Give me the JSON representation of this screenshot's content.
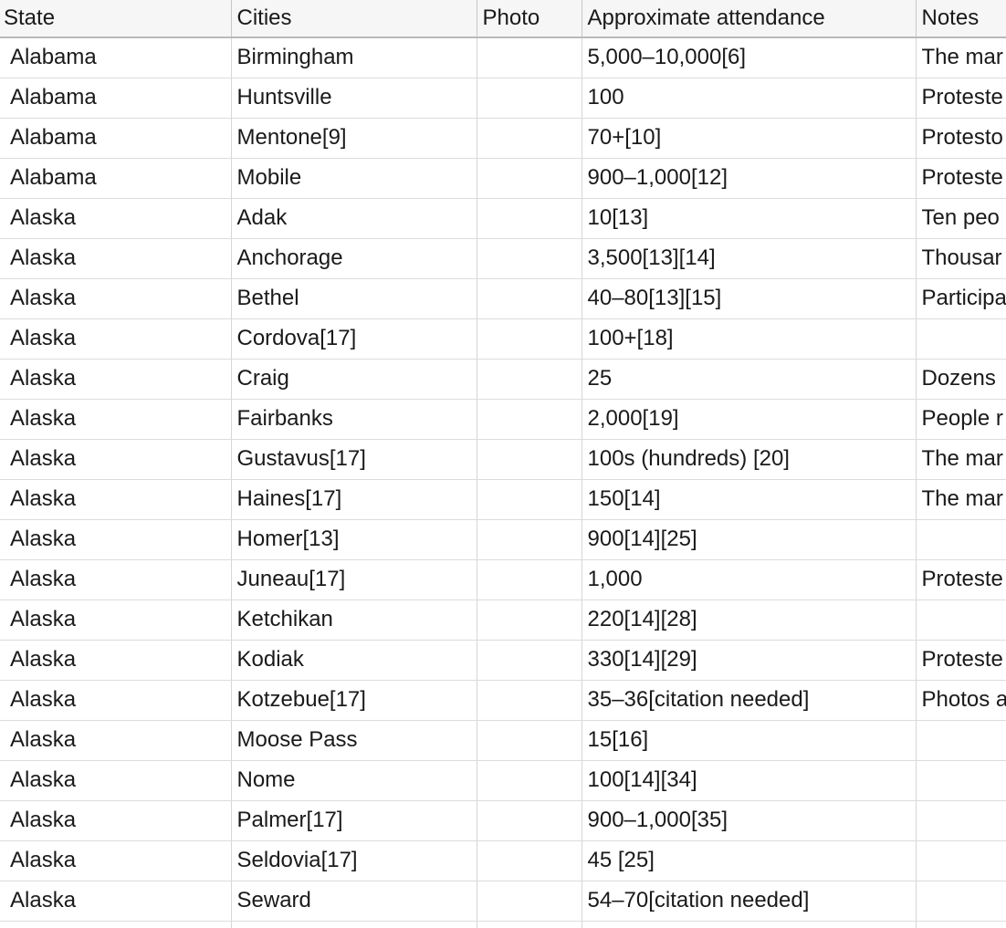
{
  "table": {
    "columns": [
      "State",
      "Cities",
      "Photo",
      "Approximate attendance",
      "Notes"
    ],
    "rows": [
      [
        "Alabama",
        "Birmingham",
        "",
        "5,000–10,000[6]",
        "The mar"
      ],
      [
        "Alabama",
        "Huntsville",
        "",
        "100",
        "Proteste"
      ],
      [
        "Alabama",
        "Mentone[9]",
        "",
        "70+[10]",
        "Protesto"
      ],
      [
        "Alabama",
        "Mobile",
        "",
        "900–1,000[12]",
        "Proteste"
      ],
      [
        "Alaska",
        "Adak",
        "",
        "10[13]",
        "Ten peo"
      ],
      [
        "Alaska",
        "Anchorage",
        "",
        "3,500[13][14]",
        "Thousar"
      ],
      [
        "Alaska",
        "Bethel",
        "",
        "40–80[13][15]",
        "Participa"
      ],
      [
        "Alaska",
        "Cordova[17]",
        "",
        "100+[18]",
        ""
      ],
      [
        "Alaska",
        "Craig",
        "",
        "25",
        "Dozens"
      ],
      [
        "Alaska",
        "Fairbanks",
        "",
        "2,000[19]",
        "People r"
      ],
      [
        "Alaska",
        "Gustavus[17]",
        "",
        "100s (hundreds) [20]",
        "The mar"
      ],
      [
        "Alaska",
        "Haines[17]",
        "",
        "150[14]",
        "The mar"
      ],
      [
        "Alaska",
        "Homer[13]",
        "",
        "900[14][25]",
        ""
      ],
      [
        "Alaska",
        "Juneau[17]",
        "",
        "1,000",
        "Proteste"
      ],
      [
        "Alaska",
        "Ketchikan",
        "",
        "220[14][28]",
        ""
      ],
      [
        "Alaska",
        "Kodiak",
        "",
        "330[14][29]",
        "Proteste"
      ],
      [
        "Alaska",
        "Kotzebue[17]",
        "",
        "35–36[citation needed]",
        "Photos a"
      ],
      [
        "Alaska",
        "Moose Pass",
        "",
        "15[16]",
        ""
      ],
      [
        "Alaska",
        "Nome",
        "",
        "100[14][34]",
        ""
      ],
      [
        "Alaska",
        "Palmer[17]",
        "",
        "900–1,000[35]",
        ""
      ],
      [
        "Alaska",
        "Seldovia[17]",
        "",
        "45 [25]",
        ""
      ],
      [
        "Alaska",
        "Seward",
        "",
        "54–70[citation needed]",
        ""
      ],
      [
        "",
        "",
        "",
        "",
        ""
      ]
    ]
  }
}
